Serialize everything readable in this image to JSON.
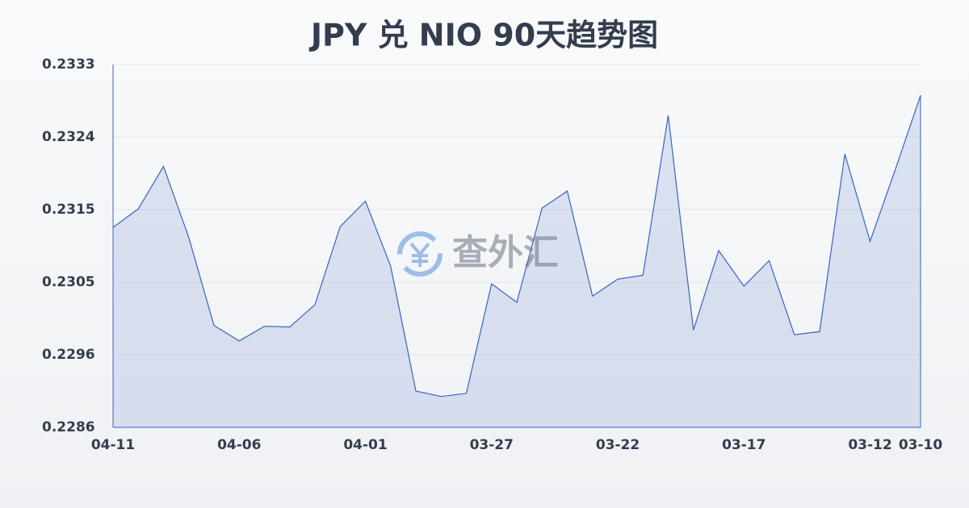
{
  "chart_data": {
    "type": "area",
    "title": "JPY 兑 NIO 90天趋势图",
    "watermark": "查外汇",
    "categories": [
      "04-11",
      null,
      null,
      null,
      null,
      "04-06",
      null,
      null,
      null,
      null,
      "04-01",
      null,
      null,
      null,
      null,
      "03-27",
      null,
      null,
      null,
      null,
      "03-22",
      null,
      null,
      null,
      null,
      "03-17",
      null,
      null,
      null,
      null,
      "03-12",
      null,
      "03-10"
    ],
    "series": [
      {
        "name": "JPY/NIO",
        "color": "#3a64c0",
        "values": [
          0.23123,
          0.23147,
          0.23202,
          0.2311,
          0.22996,
          0.22976,
          0.22995,
          0.22994,
          0.23023,
          0.23124,
          0.23157,
          0.23073,
          0.22911,
          0.22904,
          0.22908,
          0.2305,
          0.23026,
          0.23148,
          0.2317,
          0.23034,
          0.23056,
          0.23061,
          0.23268,
          0.2299,
          0.23093,
          0.23047,
          0.2308,
          0.22984,
          0.22988,
          0.23218,
          0.23105,
          0.23198,
          0.23294
        ]
      }
    ],
    "ylim": [
      0.22864,
      0.23334
    ],
    "yticks": [
      {
        "value": 0.22864,
        "label": "0.2286"
      },
      {
        "value": 0.22958,
        "label": "0.2296"
      },
      {
        "value": 0.23052,
        "label": "0.2305"
      },
      {
        "value": 0.23146,
        "label": "0.2315"
      },
      {
        "value": 0.2324,
        "label": "0.2324"
      },
      {
        "value": 0.23334,
        "label": "0.2333"
      }
    ],
    "grid": true
  }
}
